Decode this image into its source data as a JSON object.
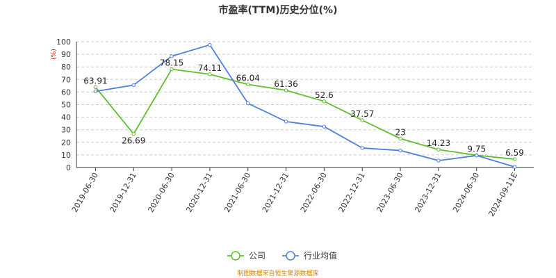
{
  "chart_data": {
    "type": "line",
    "title": "市盈率(TTM)历史分位(%)",
    "ylabel": "(%)",
    "xlabel": "",
    "ylim": [
      0,
      100
    ],
    "yticks": [
      0,
      10,
      20,
      30,
      40,
      50,
      60,
      70,
      80,
      90,
      100
    ],
    "grid": true,
    "legend_position": "bottom",
    "categories": [
      "2019-06-30",
      "2019-12-31",
      "2020-06-30",
      "2020-12-31",
      "2021-06-30",
      "2021-12-31",
      "2022-06-30",
      "2022-12-31",
      "2023-06-30",
      "2023-12-31",
      "2024-06-30",
      "2024-09-11E"
    ],
    "series": [
      {
        "name": "公司",
        "color": "#5cbf2a",
        "values": [
          63.91,
          26.69,
          78.15,
          74.11,
          66.04,
          61.36,
          52.6,
          37.57,
          23,
          14.23,
          9.75,
          6.59
        ],
        "labels": [
          "63.91",
          "26.69",
          "78.15",
          "74.11",
          "66.04",
          "61.36",
          "52.6",
          "37.57",
          "23",
          "14.23",
          "9.75",
          "6.59"
        ]
      },
      {
        "name": "行业均值",
        "color": "#4f7fdc",
        "values": [
          60.5,
          65.5,
          88.5,
          97.5,
          51,
          36.5,
          32.5,
          15.5,
          13.5,
          5.5,
          9.5,
          0.5
        ]
      }
    ]
  },
  "footer": {
    "source": "制图数据来自恒生聚源数据库"
  }
}
